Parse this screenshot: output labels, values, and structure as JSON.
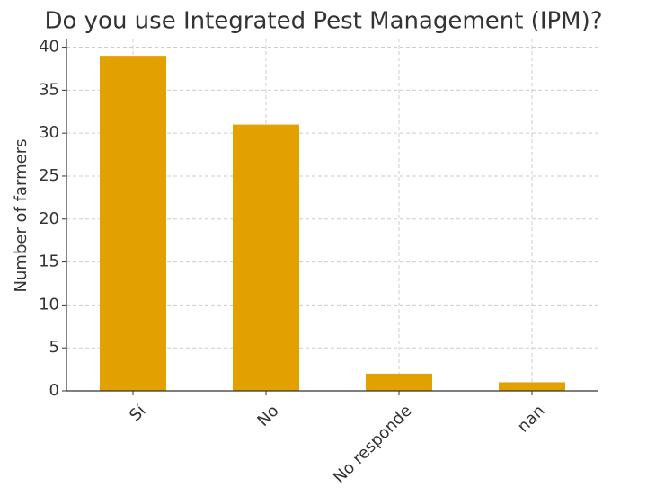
{
  "chart_data": {
    "type": "bar",
    "title": "Do you use Integrated Pest Management (IPM)?",
    "y_label": "Number of farmers",
    "categories": [
      "Sí",
      "No",
      "No responde",
      "nan"
    ],
    "values": [
      39,
      31,
      2,
      1
    ],
    "color": "#e3a100",
    "ylim": [
      0,
      41
    ],
    "yticks": [
      0,
      5,
      10,
      15,
      20,
      25,
      30,
      35,
      40
    ],
    "grid": true
  }
}
